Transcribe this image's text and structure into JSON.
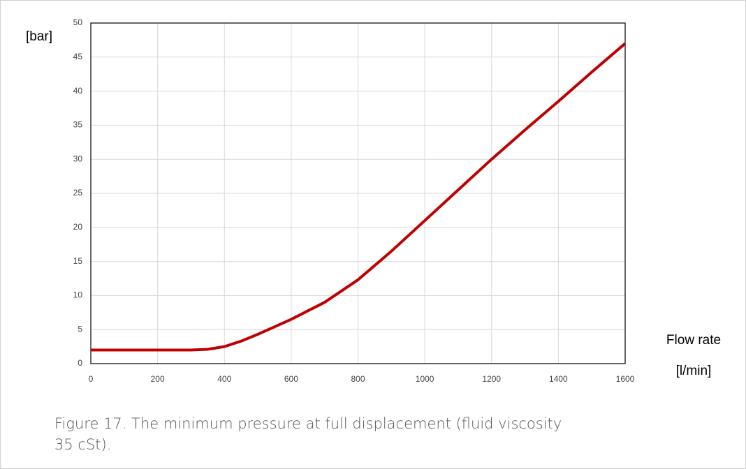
{
  "chart_data": {
    "type": "line",
    "y_label": "[bar]",
    "x_label": "Flow rate",
    "x_unit": "[l/min]",
    "x": [
      0,
      100,
      200,
      250,
      300,
      350,
      400,
      450,
      500,
      600,
      700,
      800,
      900,
      1000,
      1100,
      1200,
      1300,
      1400,
      1500,
      1600
    ],
    "series": [
      {
        "color": "#c00000",
        "values": [
          2,
          2,
          2,
          2,
          2,
          2.1,
          2.5,
          3.3,
          4.3,
          6.5,
          9,
          12.3,
          16.5,
          21,
          25.5,
          30,
          34.3,
          38.5,
          42.8,
          47
        ]
      }
    ],
    "xlim": [
      0,
      1600
    ],
    "xticks": [
      0,
      200,
      400,
      600,
      800,
      1000,
      1200,
      1400,
      1600
    ],
    "ylim": [
      0,
      50
    ],
    "yticks": [
      0,
      5,
      10,
      15,
      20,
      25,
      30,
      35,
      40,
      45,
      50
    ],
    "grid": true
  },
  "caption": "Figure 17. The minimum pressure at full displacement (fluid viscosity 35 cSt)."
}
